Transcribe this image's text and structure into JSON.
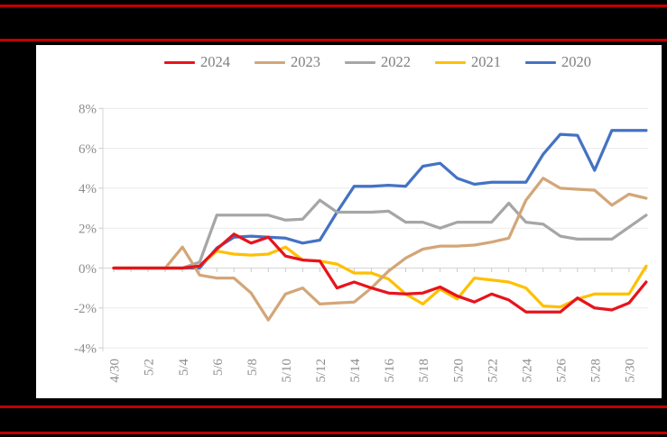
{
  "page": {
    "background": "#000000",
    "accent_line_color": "#c00000",
    "panel_background": "#ffffff"
  },
  "chart_data": {
    "type": "line",
    "title": "",
    "xlabel": "",
    "ylabel": "",
    "grid": true,
    "legend_position": "top",
    "ylim": [
      -4,
      8
    ],
    "y_ticks": [
      8,
      6,
      4,
      2,
      0,
      -2,
      -4
    ],
    "y_tick_labels": [
      "8%",
      "6%",
      "4%",
      "2%",
      "0%",
      "-2%",
      "-4%"
    ],
    "x": [
      "4/30",
      "5/1",
      "5/2",
      "5/3",
      "5/4",
      "5/5",
      "5/6",
      "5/7",
      "5/8",
      "5/9",
      "5/10",
      "5/11",
      "5/12",
      "5/13",
      "5/14",
      "5/15",
      "5/16",
      "5/17",
      "5/18",
      "5/19",
      "5/20",
      "5/21",
      "5/22",
      "5/23",
      "5/24",
      "5/25",
      "5/26",
      "5/27",
      "5/28",
      "5/29",
      "5/30",
      "5/31"
    ],
    "x_tick_labels": [
      "4/30",
      "5/2",
      "5/4",
      "5/6",
      "5/8",
      "5/10",
      "5/12",
      "5/14",
      "5/16",
      "5/18",
      "5/20",
      "5/22",
      "5/24",
      "5/26",
      "5/28",
      "5/30"
    ],
    "series": [
      {
        "name": "2024",
        "color": "#e8131c",
        "values": [
          0,
          0,
          0,
          0,
          0,
          0.1,
          0.95,
          1.7,
          1.25,
          1.55,
          0.6,
          0.4,
          0.35,
          -1.0,
          -0.7,
          -1.0,
          -1.25,
          -1.3,
          -1.25,
          -0.95,
          -1.4,
          -1.7,
          -1.3,
          -1.6,
          -2.2,
          -2.2,
          -2.2,
          -1.5,
          -2.0,
          -2.1,
          -1.75,
          -0.7
        ]
      },
      {
        "name": "2023",
        "color": "#d3a678",
        "values": [
          0,
          0,
          0,
          0,
          1.05,
          -0.35,
          -0.5,
          -0.5,
          -1.25,
          -2.6,
          -1.3,
          -1.0,
          -1.8,
          -1.75,
          -1.7,
          -1.0,
          -0.15,
          0.5,
          0.95,
          1.1,
          1.1,
          1.15,
          1.3,
          1.5,
          3.4,
          4.5,
          4.0,
          3.95,
          3.9,
          3.15,
          3.7,
          3.5
        ]
      },
      {
        "name": "2022",
        "color": "#a6a6a6",
        "values": [
          0,
          0,
          0,
          0,
          0,
          0.3,
          2.65,
          2.65,
          2.65,
          2.65,
          2.4,
          2.45,
          3.4,
          2.8,
          2.8,
          2.8,
          2.85,
          2.3,
          2.3,
          2.0,
          2.3,
          2.3,
          2.3,
          3.25,
          2.3,
          2.2,
          1.6,
          1.45,
          1.45,
          1.45,
          2.05,
          2.65
        ]
      },
      {
        "name": "2021",
        "color": "#fec000",
        "values": [
          0,
          0,
          0,
          0,
          0,
          0.1,
          0.85,
          0.7,
          0.65,
          0.7,
          1.05,
          0.4,
          0.35,
          0.2,
          -0.25,
          -0.25,
          -0.55,
          -1.3,
          -1.8,
          -1.05,
          -1.55,
          -0.5,
          -0.6,
          -0.7,
          -1.0,
          -1.9,
          -1.95,
          -1.55,
          -1.3,
          -1.3,
          -1.3,
          0.1
        ]
      },
      {
        "name": "2020",
        "color": "#4472c4",
        "values": [
          0,
          0,
          0,
          0,
          0,
          0,
          1.0,
          1.55,
          1.6,
          1.55,
          1.5,
          1.25,
          1.4,
          2.8,
          4.1,
          4.1,
          4.15,
          4.1,
          5.1,
          5.25,
          4.5,
          4.2,
          4.3,
          4.3,
          4.3,
          5.7,
          6.7,
          6.65,
          4.9,
          6.9,
          6.9,
          6.9
        ]
      }
    ]
  }
}
